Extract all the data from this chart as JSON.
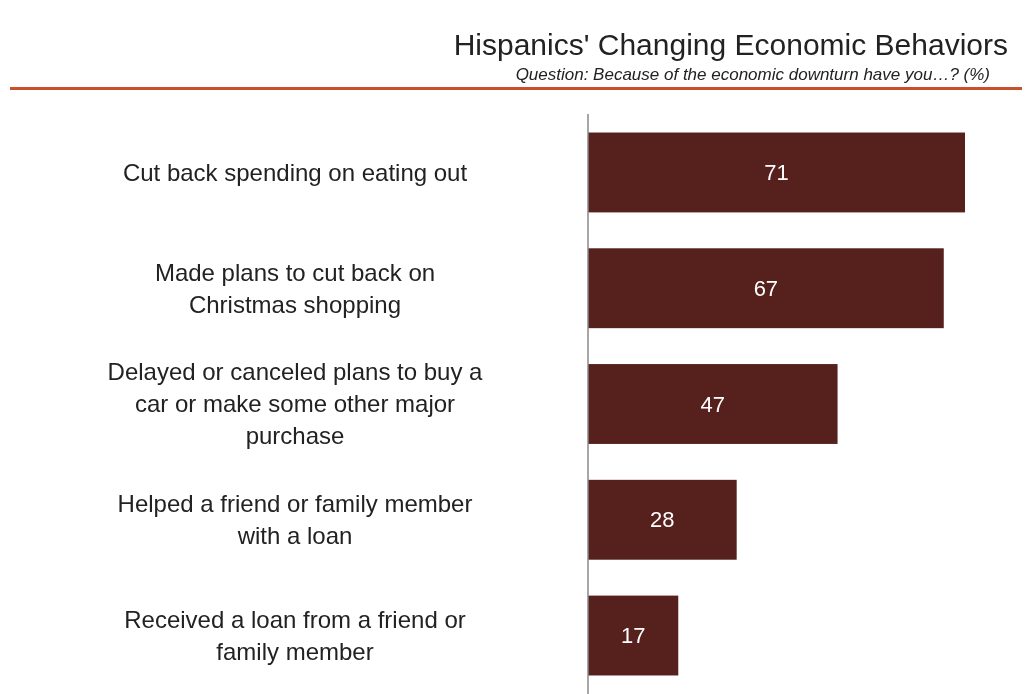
{
  "chart_data": {
    "type": "bar",
    "orientation": "horizontal",
    "title": "Hispanics' Changing Economic Behaviors",
    "subtitle": "Question: Because of the economic downturn have you…? (%)",
    "categories": [
      "Cut back spending on eating out",
      "Made plans to cut back on Christmas shopping",
      "Delayed or canceled plans to buy a car or make some other major purchase",
      "Helped a friend or family member with a loan",
      "Received a loan from a friend or family member"
    ],
    "values": [
      71,
      67,
      47,
      28,
      17
    ],
    "color": "#56201d",
    "data_labels": true
  }
}
